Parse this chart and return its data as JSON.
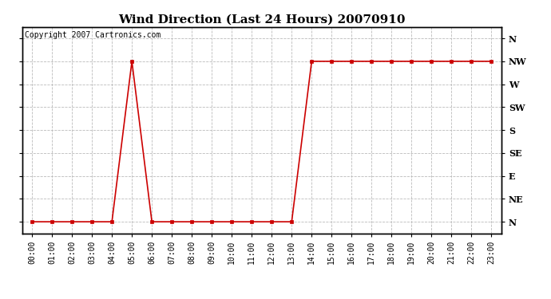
{
  "title": "Wind Direction (Last 24 Hours) 20070910",
  "copyright_text": "Copyright 2007 Cartronics.com",
  "background_color": "#ffffff",
  "plot_bg_color": "#ffffff",
  "line_color": "#cc0000",
  "marker": "s",
  "marker_size": 2.5,
  "grid_color": "#bbbbbb",
  "grid_style": "--",
  "y_labels": [
    "N",
    "NE",
    "E",
    "SE",
    "S",
    "SW",
    "W",
    "NW",
    "N"
  ],
  "y_values": [
    0,
    1,
    2,
    3,
    4,
    5,
    6,
    7,
    8
  ],
  "x_hours": [
    0,
    1,
    2,
    3,
    4,
    5,
    6,
    7,
    8,
    9,
    10,
    11,
    12,
    13,
    14,
    15,
    16,
    17,
    18,
    19,
    20,
    21,
    22,
    23
  ],
  "wind_data": [
    0,
    0,
    0,
    0,
    0,
    7,
    0,
    0,
    0,
    0,
    0,
    0,
    0,
    0,
    7,
    7,
    7,
    7,
    7,
    7,
    7,
    7,
    7,
    7
  ],
  "xlim": [
    -0.5,
    23.5
  ],
  "ylim": [
    -0.5,
    8.5
  ],
  "title_fontsize": 11,
  "tick_fontsize": 7,
  "label_fontsize": 8,
  "copyright_fontsize": 7
}
